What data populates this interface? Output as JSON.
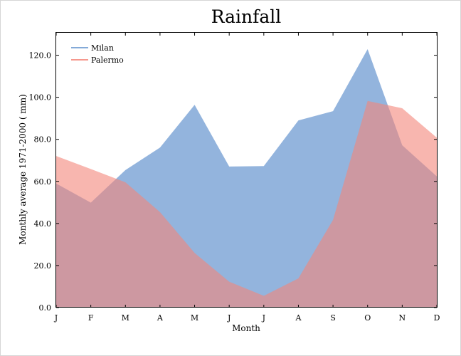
{
  "chart_data": {
    "type": "area",
    "title": "Rainfall",
    "xlabel": "Month",
    "ylabel": "Monthly average 1971-2000 ( mm)",
    "categories": [
      "J",
      "F",
      "M",
      "A",
      "M",
      "J",
      "J",
      "A",
      "S",
      "O",
      "N",
      "D"
    ],
    "ylim": [
      0,
      130
    ],
    "yticks": [
      0,
      20,
      40,
      60,
      80,
      100,
      120
    ],
    "ytick_labels": [
      "0.0",
      "20.0",
      "40.0",
      "60.0",
      "80.0",
      "100.0",
      "120.0"
    ],
    "legend_position": "top-left",
    "grid": false,
    "series": [
      {
        "name": "Milan",
        "color": "#6f9bd1",
        "values": [
          59.0,
          49.9,
          65.4,
          76.1,
          96.4,
          67.1,
          67.3,
          89.0,
          93.4,
          122.9,
          77.2,
          62.4
        ]
      },
      {
        "name": "Palermo",
        "color": "#f4867a",
        "values": [
          72.1,
          65.9,
          59.6,
          45.4,
          26.0,
          12.3,
          5.6,
          13.9,
          41.7,
          98.3,
          94.8,
          80.8
        ]
      }
    ]
  }
}
